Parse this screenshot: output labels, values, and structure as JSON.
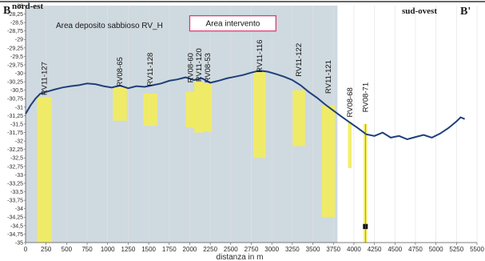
{
  "chart_data": {
    "type": "line",
    "section_start": "B",
    "section_end": "B'",
    "direction_left": "nord-est",
    "direction_right": "sud-ovest",
    "area_label": "Area deposito sabbioso RV_H",
    "intervention_label": "Area intervento",
    "xlabel": "distanza in m",
    "xlim": [
      0,
      5500
    ],
    "ylim": [
      -35,
      -28
    ],
    "x_ticks": [
      "0",
      "250",
      "500",
      "750",
      "1000",
      "1250",
      "1500",
      "1750",
      "2000",
      "2250",
      "2500",
      "2750",
      "3000",
      "3250",
      "3500",
      "3750",
      "4000",
      "4250",
      "4500",
      "4750",
      "5000",
      "5250",
      "5500"
    ],
    "y_ticks": [
      "-28",
      "-28,25",
      "-28,5",
      "-28,75",
      "-29",
      "-29,25",
      "-29,5",
      "-29,75",
      "-30",
      "-30,25",
      "-30,5",
      "-30,75",
      "-31",
      "-31,25",
      "-31,5",
      "-31,75",
      "-32",
      "-32,25",
      "-32,5",
      "-32,75",
      "-33",
      "-33,25",
      "-33,5",
      "-33,75",
      "-34",
      "-34,25",
      "-34,5",
      "-34,75",
      "-35"
    ],
    "shaded_region": {
      "x": [
        0,
        3800
      ],
      "color": "#cfd9e0"
    },
    "intervention_box": {
      "x": [
        2000,
        3050
      ],
      "y": [
        -28.3,
        -28.75
      ]
    },
    "profile_color": "#1f3f7a",
    "core_color": "#f2ec5b",
    "profile": {
      "x": [
        0,
        60,
        120,
        180,
        250,
        350,
        450,
        550,
        650,
        750,
        850,
        950,
        1050,
        1150,
        1250,
        1350,
        1450,
        1550,
        1650,
        1750,
        1850,
        1950,
        2050,
        2150,
        2250,
        2350,
        2450,
        2550,
        2650,
        2750,
        2850,
        2950,
        3050,
        3150,
        3250,
        3350,
        3450,
        3550,
        3650,
        3750,
        3850,
        3950,
        4050,
        4150,
        4250,
        4350,
        4450,
        4550,
        4650,
        4750,
        4850,
        4950,
        5050,
        5150,
        5250,
        5300,
        5350
      ],
      "y": [
        -31.2,
        -30.95,
        -30.75,
        -30.6,
        -30.55,
        -30.48,
        -30.42,
        -30.38,
        -30.35,
        -30.3,
        -30.32,
        -30.38,
        -30.42,
        -30.36,
        -30.44,
        -30.38,
        -30.4,
        -30.35,
        -30.3,
        -30.22,
        -30.18,
        -30.12,
        -30.2,
        -30.15,
        -30.28,
        -30.22,
        -30.15,
        -30.1,
        -30.05,
        -29.98,
        -29.92,
        -29.95,
        -30.02,
        -30.1,
        -30.2,
        -30.35,
        -30.55,
        -30.72,
        -30.92,
        -31.1,
        -31.28,
        -31.45,
        -31.62,
        -31.8,
        -31.85,
        -31.75,
        -31.9,
        -31.85,
        -31.95,
        -31.88,
        -31.82,
        -31.9,
        -31.78,
        -31.62,
        -31.42,
        -31.3,
        -31.35
      ]
    },
    "cores": [
      {
        "name": "RV11-127",
        "x": 230,
        "top": -30.7,
        "bottom": -35.0,
        "width": 180
      },
      {
        "name": "RV08-65",
        "x": 1150,
        "top": -30.42,
        "bottom": -31.4,
        "width": 170
      },
      {
        "name": "RV11-128",
        "x": 1520,
        "top": -30.6,
        "bottom": -31.55,
        "width": 170
      },
      {
        "name": "RV08-60",
        "x": 2010,
        "top": -30.55,
        "bottom": -31.6,
        "width": 120
      },
      {
        "name": "RV11-120",
        "x": 2110,
        "top": -30.25,
        "bottom": -31.75,
        "width": 110
      },
      {
        "name": "RV08-53",
        "x": 2220,
        "top": -30.3,
        "bottom": -31.72,
        "width": 100
      },
      {
        "name": "RV11-116",
        "x": 2850,
        "top": -29.95,
        "bottom": -32.5,
        "width": 150
      },
      {
        "name": "RV11-122",
        "x": 3330,
        "top": -30.5,
        "bottom": -32.15,
        "width": 150
      },
      {
        "name": "RV11-121",
        "x": 3690,
        "top": -30.95,
        "bottom": -34.25,
        "width": 160
      },
      {
        "name": "RV08-68",
        "x": 3950,
        "top": -31.45,
        "bottom": -32.8,
        "width": 45
      },
      {
        "name": "RV08-71",
        "x": 4140,
        "top": -31.5,
        "bottom": -35.0,
        "width": 45
      }
    ]
  }
}
